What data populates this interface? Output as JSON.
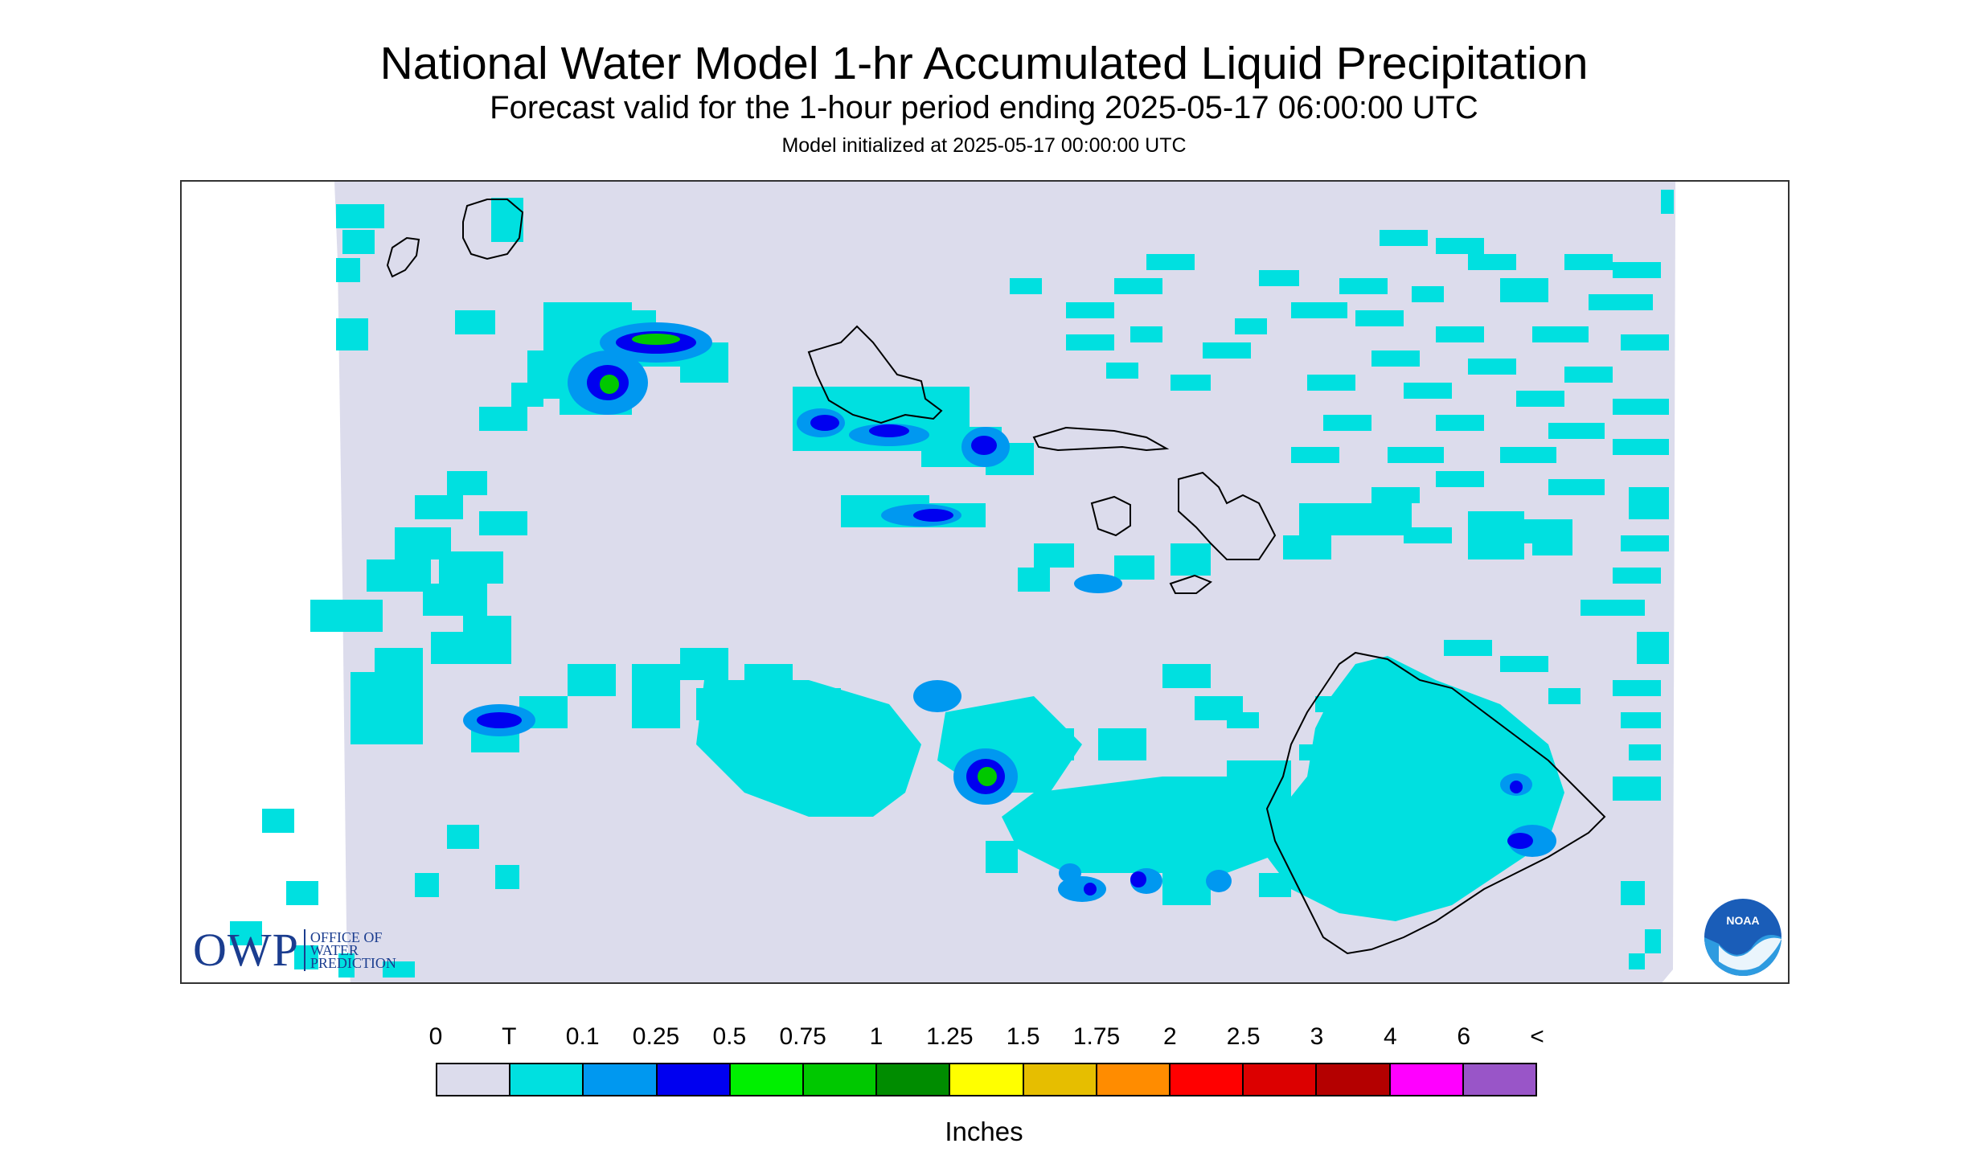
{
  "title": "National Water Model 1-hr Accumulated Liquid Precipitation",
  "subtitle": "Forecast valid for the 1-hour period ending 2025-05-17 06:00:00 UTC",
  "init": "Model initialized at 2025-05-17 00:00:00 UTC",
  "logo": {
    "owp_big": "OWP",
    "owp_line1": "OFFICE OF",
    "owp_line2": "WATER",
    "owp_line3": "PREDICTION",
    "noaa": "NOAA"
  },
  "legend": {
    "labels": [
      "0",
      "T",
      "0.1",
      "0.25",
      "0.5",
      "0.75",
      "1",
      "1.25",
      "1.5",
      "1.75",
      "2",
      "2.5",
      "3",
      "4",
      "6",
      "<"
    ],
    "colors": [
      "#dcdcec",
      "#00e0e0",
      "#0098f0",
      "#0000f0",
      "#00f000",
      "#00c800",
      "#008c00",
      "#ffff00",
      "#e6be00",
      "#ff8c00",
      "#ff0000",
      "#dc0000",
      "#b40000",
      "#ff00ff",
      "#9955c8"
    ],
    "units": "Inches"
  },
  "colors": {
    "background_field": "#dcdcec",
    "trace": "#00e0e0",
    "light": "#0098f0",
    "blue": "#0000f0",
    "green": "#00c800",
    "coastline": "#000000"
  }
}
